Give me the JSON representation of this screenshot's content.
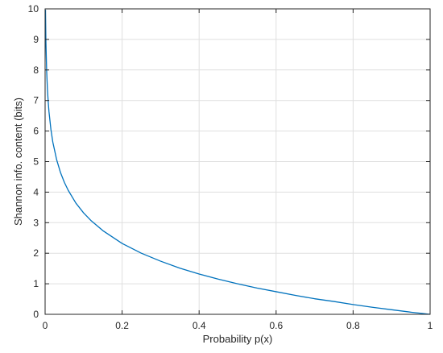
{
  "chart_data": {
    "type": "line",
    "title": "",
    "xlabel": "Probability p(x)",
    "ylabel": "Shannon info. content (bits)",
    "xlim": [
      0,
      1
    ],
    "ylim": [
      0,
      10
    ],
    "grid": true,
    "x_ticks": [
      0,
      0.2,
      0.4,
      0.6,
      0.8,
      1
    ],
    "x_tick_labels": [
      "0",
      "0.2",
      "0.4",
      "0.6",
      "0.8",
      "1"
    ],
    "y_ticks": [
      0,
      1,
      2,
      3,
      4,
      5,
      6,
      7,
      8,
      9,
      10
    ],
    "y_tick_labels": [
      "0",
      "1",
      "2",
      "3",
      "4",
      "5",
      "6",
      "7",
      "8",
      "9",
      "10"
    ],
    "series": [
      {
        "color": "#0072bd",
        "x": [
          0.001,
          0.002,
          0.004,
          0.006,
          0.008,
          0.01,
          0.015,
          0.02,
          0.03,
          0.04,
          0.05,
          0.06,
          0.08,
          0.1,
          0.12,
          0.15,
          0.2,
          0.25,
          0.3,
          0.35,
          0.4,
          0.45,
          0.5,
          0.55,
          0.6,
          0.65,
          0.7,
          0.75,
          0.8,
          0.85,
          0.9,
          0.95,
          1.0
        ],
        "y": [
          9.97,
          8.97,
          7.97,
          7.38,
          6.97,
          6.64,
          6.06,
          5.64,
          5.06,
          4.64,
          4.32,
          4.06,
          3.64,
          3.32,
          3.06,
          2.74,
          2.32,
          2.0,
          1.74,
          1.51,
          1.32,
          1.15,
          1.0,
          0.86,
          0.74,
          0.62,
          0.51,
          0.42,
          0.32,
          0.23,
          0.15,
          0.07,
          0.0
        ]
      }
    ]
  }
}
